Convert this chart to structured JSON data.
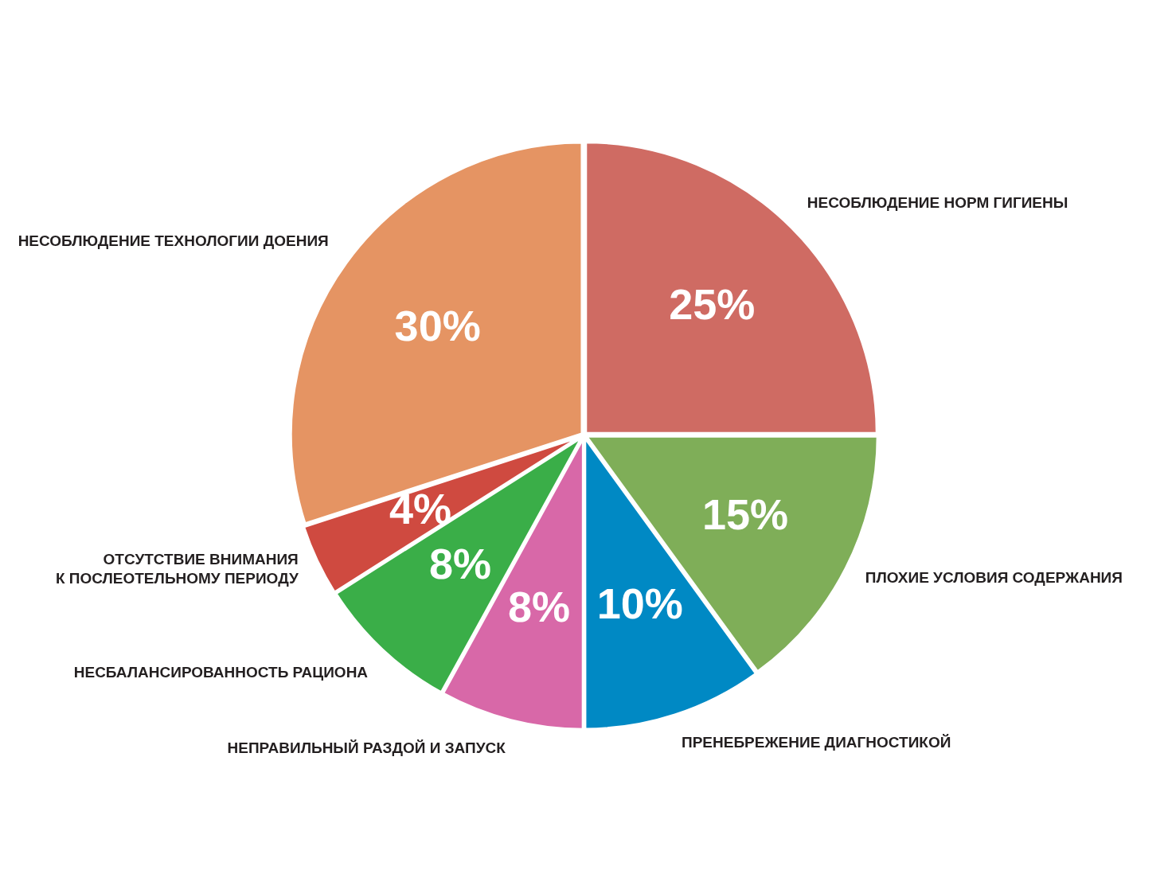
{
  "chart_data": {
    "type": "pie",
    "categories": [
      "НЕСОБЛЮДЕНИЕ НОРМ ГИГИЕНЫ",
      "ПЛОХИЕ УСЛОВИЯ СОДЕРЖАНИЯ",
      "ПРЕНЕБРЕЖЕНИЕ ДИАГНОСТИКОЙ",
      "НЕПРАВИЛЬНЫЙ РАЗДОЙ И ЗАПУСК",
      "НЕСБАЛАНСИРОВАННОСТЬ РАЦИОНА",
      "ОТСУТСТВИЕ ВНИМАНИЯ\nК ПОСЛЕОТЕЛЬНОМУ ПЕРИОДУ",
      "НЕСОБЛЮДЕНИЕ ТЕХНОЛОГИИ ДОЕНИЯ"
    ],
    "values": [
      25,
      15,
      10,
      8,
      8,
      4,
      30
    ],
    "value_labels": [
      "25%",
      "15%",
      "10%",
      "8%",
      "8%",
      "4%",
      "30%"
    ],
    "colors": [
      "#cf6b63",
      "#7fae58",
      "#0089c4",
      "#d868a8",
      "#3aae48",
      "#cf4a40",
      "#e59463"
    ],
    "legend": false
  }
}
